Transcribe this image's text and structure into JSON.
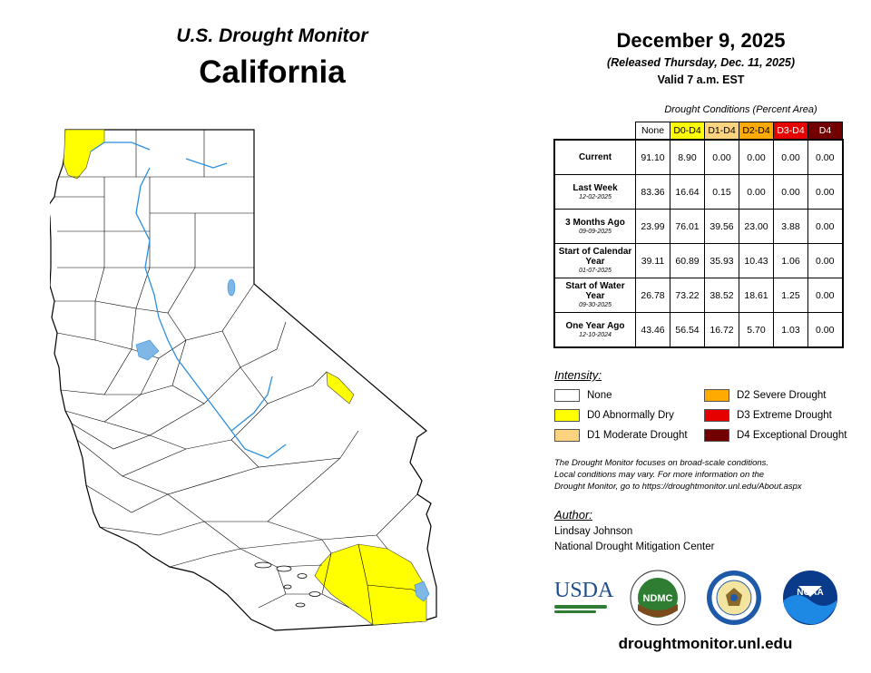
{
  "header": {
    "title": "U.S. Drought Monitor",
    "state": "California",
    "date": "December 9, 2025",
    "released": "(Released Thursday, Dec. 11, 2025)",
    "valid": "Valid 7 a.m. EST"
  },
  "table": {
    "caption": "Drought Conditions (Percent Area)",
    "columns": [
      {
        "label": "None",
        "color": "#ffffff",
        "text": "#000000"
      },
      {
        "label": "D0-D4",
        "color": "#ffff00",
        "text": "#000000"
      },
      {
        "label": "D1-D4",
        "color": "#fcd37f",
        "text": "#000000"
      },
      {
        "label": "D2-D4",
        "color": "#ffaa00",
        "text": "#000000"
      },
      {
        "label": "D3-D4",
        "color": "#e60000",
        "text": "#ffffff"
      },
      {
        "label": "D4",
        "color": "#730000",
        "text": "#ffffff"
      }
    ],
    "rows": [
      {
        "label": "Current",
        "date": "",
        "values": [
          "91.10",
          "8.90",
          "0.00",
          "0.00",
          "0.00",
          "0.00"
        ]
      },
      {
        "label": "Last Week",
        "date": "12-02-2025",
        "values": [
          "83.36",
          "16.64",
          "0.15",
          "0.00",
          "0.00",
          "0.00"
        ]
      },
      {
        "label": "3 Months Ago",
        "date": "09-09-2025",
        "values": [
          "23.99",
          "76.01",
          "39.56",
          "23.00",
          "3.88",
          "0.00"
        ]
      },
      {
        "label": "Start of Calendar Year",
        "date": "01-07-2025",
        "values": [
          "39.11",
          "60.89",
          "35.93",
          "10.43",
          "1.06",
          "0.00"
        ]
      },
      {
        "label": "Start of Water Year",
        "date": "09-30-2025",
        "values": [
          "26.78",
          "73.22",
          "38.52",
          "18.61",
          "1.25",
          "0.00"
        ]
      },
      {
        "label": "One Year Ago",
        "date": "12-10-2024",
        "values": [
          "43.46",
          "56.54",
          "16.72",
          "5.70",
          "1.03",
          "0.00"
        ]
      }
    ]
  },
  "intensity": {
    "heading": "Intensity:",
    "items": [
      {
        "label": "None",
        "color": "#ffffff"
      },
      {
        "label": "D0 Abnormally Dry",
        "color": "#ffff00"
      },
      {
        "label": "D1 Moderate Drought",
        "color": "#fcd37f"
      },
      {
        "label": "D2 Severe Drought",
        "color": "#ffaa00"
      },
      {
        "label": "D3 Extreme Drought",
        "color": "#e60000"
      },
      {
        "label": "D4 Exceptional Drought",
        "color": "#730000"
      }
    ]
  },
  "note": {
    "line1": "The Drought Monitor focuses on broad-scale conditions.",
    "line2": "Local conditions may vary. For more information on the",
    "line3": "Drought Monitor, go to https://droughtmonitor.unl.edu/About.aspx"
  },
  "author": {
    "heading": "Author:",
    "name": "Lindsay Johnson",
    "org": "National Drought Mitigation Center"
  },
  "logos": {
    "usda": "USDA",
    "ndmc": "NDMC",
    "noaa": "NOAA"
  },
  "footer": {
    "url": "droughtmonitor.unl.edu"
  },
  "map": {
    "d0_color": "#ffff00",
    "water_color": "#7fb8e6",
    "river_color": "#2b8fe0"
  }
}
